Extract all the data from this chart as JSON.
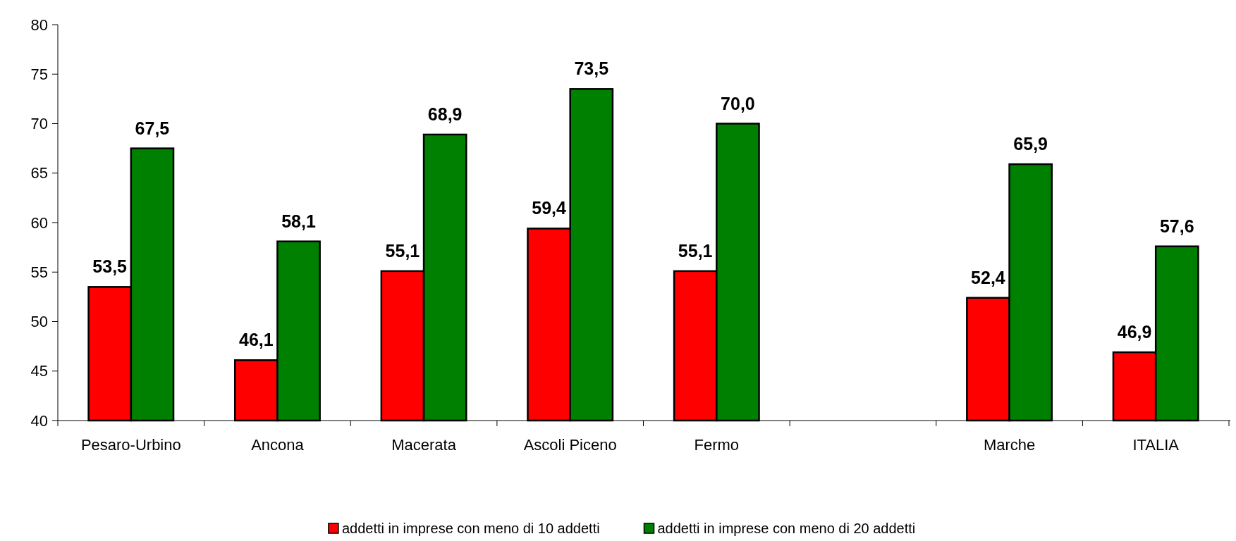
{
  "chart_data": {
    "type": "bar",
    "categories": [
      "Pesaro-Urbino",
      "Ancona",
      "Macerata",
      "Ascoli Piceno",
      "Fermo",
      null,
      "Marche",
      "ITALIA"
    ],
    "series": [
      {
        "name": "addetti in imprese con meno di 10 addetti",
        "color": "#ff0000",
        "values": [
          53.5,
          46.1,
          55.1,
          59.4,
          55.1,
          null,
          52.4,
          46.9
        ],
        "value_labels": [
          "53,5",
          "46,1",
          "55,1",
          "59,4",
          "55,1",
          null,
          "52,4",
          "46,9"
        ]
      },
      {
        "name": "addetti in imprese con meno di 20 addetti",
        "color": "#008000",
        "values": [
          67.5,
          58.1,
          68.9,
          73.5,
          70.0,
          null,
          65.9,
          57.6
        ],
        "value_labels": [
          "67,5",
          "58,1",
          "68,9",
          "73,5",
          "70,0",
          null,
          "65,9",
          "57,6"
        ]
      }
    ],
    "ylim": [
      40,
      80
    ],
    "yticks": [
      40,
      45,
      50,
      55,
      60,
      65,
      70,
      75,
      80
    ],
    "legend": "bottom",
    "grid": false
  }
}
